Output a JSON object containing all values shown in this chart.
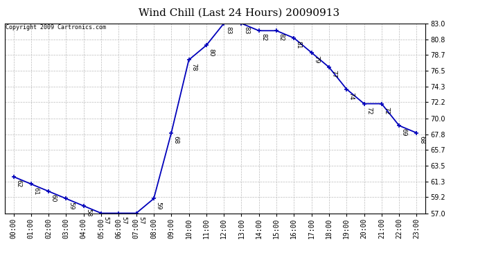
{
  "title": "Wind Chill (Last 24 Hours) 20090913",
  "copyright": "Copyright 2009 Cartronics.com",
  "hours": [
    "00:00",
    "01:00",
    "02:00",
    "03:00",
    "04:00",
    "05:00",
    "06:00",
    "07:00",
    "08:00",
    "09:00",
    "10:00",
    "11:00",
    "12:00",
    "13:00",
    "14:00",
    "15:00",
    "16:00",
    "17:00",
    "18:00",
    "19:00",
    "20:00",
    "21:00",
    "22:00",
    "23:00"
  ],
  "values": [
    62,
    61,
    60,
    59,
    58,
    57,
    57,
    57,
    59,
    68,
    78,
    80,
    83,
    83,
    82,
    82,
    81,
    79,
    77,
    74,
    72,
    72,
    69,
    68
  ],
  "ylim_min": 57.0,
  "ylim_max": 83.0,
  "yticks": [
    57.0,
    59.2,
    61.3,
    63.5,
    65.7,
    67.8,
    70.0,
    72.2,
    74.3,
    76.5,
    78.7,
    80.8,
    83.0
  ],
  "line_color": "#0000bb",
  "marker": "+",
  "marker_color": "#0000bb",
  "bg_color": "#ffffff",
  "grid_color": "#bbbbbb",
  "label_color": "#000000",
  "title_fontsize": 11,
  "tick_fontsize": 7,
  "annotation_fontsize": 6.5
}
